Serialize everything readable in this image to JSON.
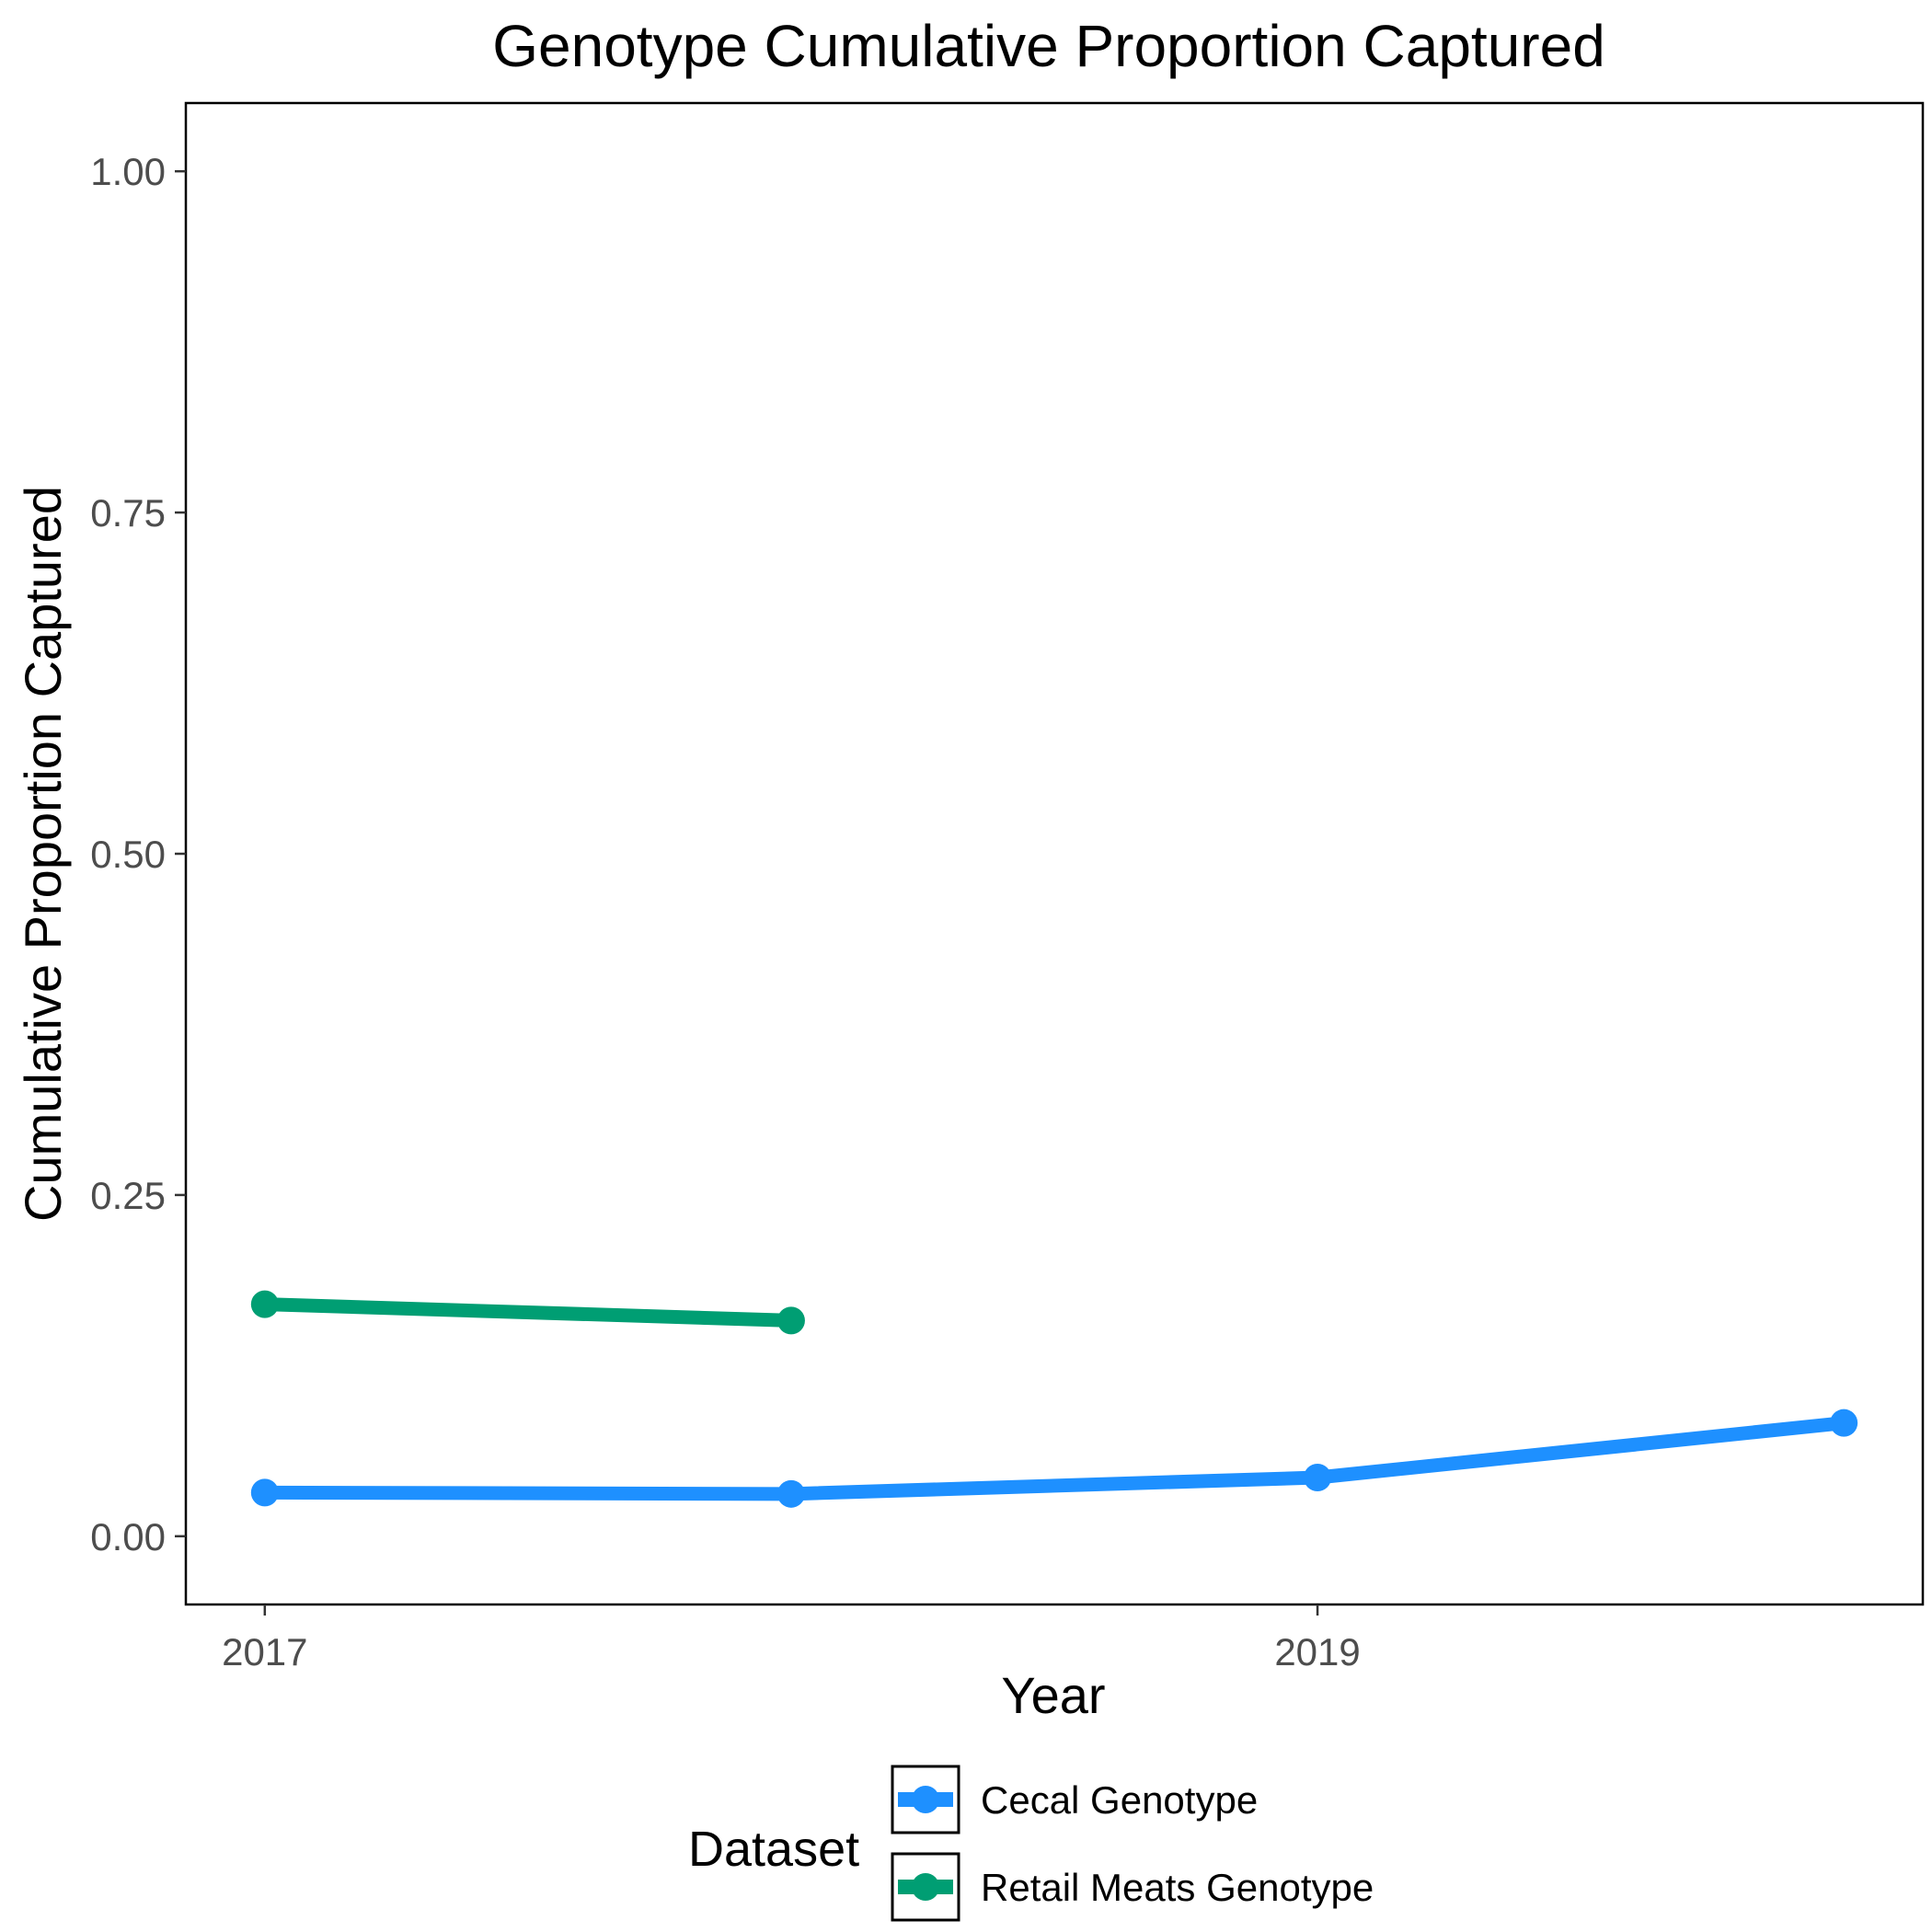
{
  "chart_data": {
    "type": "line",
    "title": "Genotype Cumulative Proportion Captured",
    "xlabel": "Year",
    "ylabel": "Cumulative Proportion Captured",
    "xlim": [
      2016.85,
      2020.15
    ],
    "ylim": [
      -0.05,
      1.05
    ],
    "x_ticks": [
      2017,
      2019
    ],
    "x_tick_labels": [
      "2017",
      "2019"
    ],
    "y_ticks": [
      0,
      0.25,
      0.5,
      0.75,
      1.0
    ],
    "y_tick_labels": [
      "0.00",
      "0.25",
      "0.50",
      "0.75",
      "1.00"
    ],
    "grid": false,
    "legend": {
      "title": "Dataset",
      "position": "bottom"
    },
    "series": [
      {
        "name": "Cecal Genotype",
        "color": "#1e90ff",
        "x": [
          2017,
          2018,
          2019,
          2020
        ],
        "y": [
          0.032,
          0.031,
          0.043,
          0.083
        ]
      },
      {
        "name": "Retail Meats Genotype",
        "color": "#009e73",
        "x": [
          2017,
          2018
        ],
        "y": [
          0.17,
          0.158
        ]
      }
    ]
  }
}
